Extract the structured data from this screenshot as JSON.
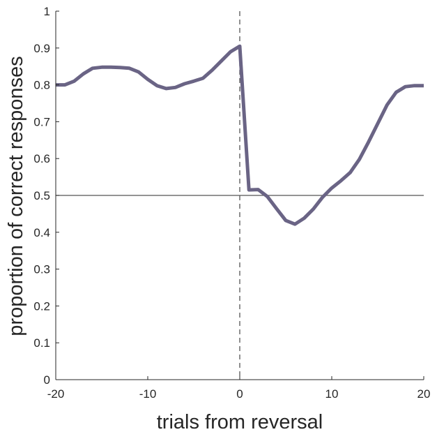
{
  "chart_data": {
    "type": "line",
    "xlabel": "trials from reversal",
    "ylabel": "proportion of correct responses",
    "xlim": [
      -20,
      20
    ],
    "ylim": [
      0,
      1
    ],
    "xticks": [
      -20,
      -10,
      0,
      10,
      20
    ],
    "xtick_labels": [
      "-20",
      "-10",
      "0",
      "10",
      "20"
    ],
    "yticks": [
      0,
      0.1,
      0.2,
      0.3,
      0.4,
      0.5,
      0.6,
      0.7,
      0.8,
      0.9,
      1
    ],
    "ytick_labels": [
      "0",
      "0.1",
      "0.2",
      "0.3",
      "0.4",
      "0.5",
      "0.6",
      "0.7",
      "0.8",
      "0.9",
      "1"
    ],
    "grid": false,
    "reference_lines": [
      {
        "orientation": "horizontal",
        "value": 0.5,
        "style": "solid",
        "color": "#555555"
      },
      {
        "orientation": "vertical",
        "value": 0,
        "style": "dashed",
        "color": "#555555"
      }
    ],
    "series": [
      {
        "color": "#6a6485",
        "x": [
          -20,
          -19,
          -18,
          -17,
          -16,
          -15,
          -14,
          -13,
          -12,
          -11,
          -10,
          -9,
          -8,
          -7,
          -6,
          -5,
          -4,
          -3,
          -2,
          -1,
          0,
          1,
          2,
          3,
          4,
          5,
          6,
          7,
          8,
          9,
          10,
          11,
          12,
          13,
          14,
          15,
          16,
          17,
          18,
          19,
          20
        ],
        "y": [
          0.8,
          0.8,
          0.81,
          0.83,
          0.845,
          0.848,
          0.848,
          0.847,
          0.845,
          0.835,
          0.815,
          0.798,
          0.79,
          0.793,
          0.803,
          0.81,
          0.818,
          0.84,
          0.865,
          0.89,
          0.905,
          0.515,
          0.516,
          0.497,
          0.464,
          0.432,
          0.422,
          0.438,
          0.463,
          0.495,
          0.52,
          0.54,
          0.562,
          0.598,
          0.645,
          0.695,
          0.745,
          0.78,
          0.795,
          0.798,
          0.798
        ]
      }
    ]
  }
}
